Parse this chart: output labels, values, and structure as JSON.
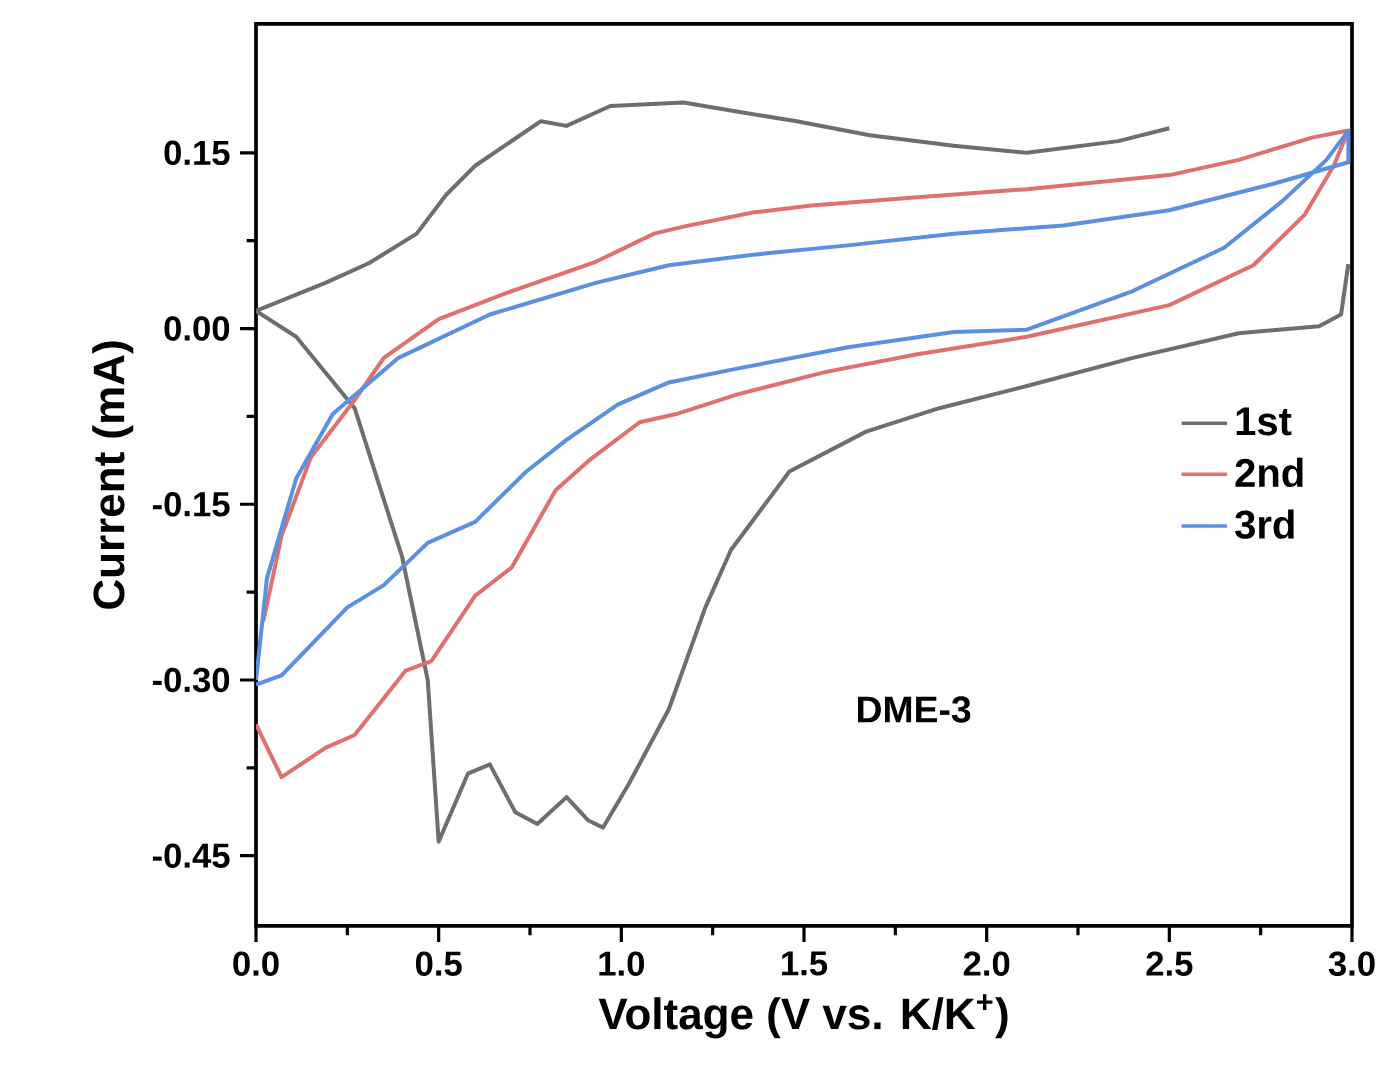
{
  "chart_data": {
    "type": "line",
    "xlabel": "Voltage (V vs. K/K$^{+}$)",
    "ylabel": "Current (mA)",
    "annotations": [
      "DME-3"
    ],
    "xlim": [
      0,
      3.0
    ],
    "ylim": [
      -0.51,
      0.26
    ],
    "xticks": [
      {
        "value": 0,
        "label": "0.0"
      },
      {
        "value": 0.5,
        "label": "0.5"
      },
      {
        "value": 1.0,
        "label": "1.0"
      },
      {
        "value": 1.5,
        "label": "1.5"
      },
      {
        "value": 2.0,
        "label": "2.0"
      },
      {
        "value": 2.5,
        "label": "2.5"
      },
      {
        "value": 3.0,
        "label": "3.0"
      }
    ],
    "yticks": [
      {
        "value": -0.45,
        "label": "-0.45"
      },
      {
        "value": -0.3,
        "label": "-0.30"
      },
      {
        "value": -0.15,
        "label": "-0.15"
      },
      {
        "value": 0,
        "label": "0.00"
      },
      {
        "value": 0.15,
        "label": "0.15"
      }
    ],
    "legend": "right",
    "grid": false,
    "marker": "none",
    "line_style": "solid",
    "series": [
      {
        "name": "1st",
        "color": "#6e6e6e",
        "x": [
          2.5,
          2.36,
          2.11,
          1.91,
          1.68,
          1.48,
          1.32,
          1.17,
          0.97,
          0.85,
          0.78,
          0.6,
          0.52,
          0.44,
          0.31,
          0.19,
          0.0,
          0.11,
          0.27,
          0.4,
          0.47,
          0.5,
          0.58,
          0.64,
          0.71,
          0.77,
          0.85,
          0.91,
          0.95,
          1.02,
          1.13,
          1.23,
          1.3,
          1.46,
          1.67,
          1.87,
          2.11,
          2.4,
          2.69,
          2.91,
          2.97,
          2.99
        ],
        "values": [
          0.171,
          0.16,
          0.15,
          0.156,
          0.165,
          0.177,
          0.185,
          0.193,
          0.19,
          0.173,
          0.177,
          0.139,
          0.114,
          0.081,
          0.056,
          0.039,
          0.015,
          -0.007,
          -0.068,
          -0.195,
          -0.3,
          -0.438,
          -0.38,
          -0.372,
          -0.413,
          -0.423,
          -0.4,
          -0.42,
          -0.426,
          -0.389,
          -0.325,
          -0.238,
          -0.189,
          -0.122,
          -0.088,
          -0.068,
          -0.049,
          -0.025,
          -0.004,
          0.002,
          0.012,
          0.055
        ]
      },
      {
        "name": "2nd",
        "color": "#e07070",
        "x": [
          0.0,
          0.07,
          0.19,
          0.27,
          0.41,
          0.48,
          0.6,
          0.7,
          0.82,
          0.91,
          1.05,
          1.15,
          1.32,
          1.56,
          1.81,
          2.11,
          2.5,
          2.73,
          2.87,
          2.95,
          2.99,
          2.89,
          2.69,
          2.5,
          2.11,
          1.81,
          1.52,
          1.36,
          1.17,
          1.09,
          0.93,
          0.7,
          0.5,
          0.35,
          0.27,
          0.15,
          0.07,
          0.02
        ],
        "values": [
          -0.338,
          -0.383,
          -0.358,
          -0.347,
          -0.292,
          -0.284,
          -0.228,
          -0.204,
          -0.138,
          -0.113,
          -0.08,
          -0.073,
          -0.056,
          -0.037,
          -0.022,
          -0.007,
          0.02,
          0.054,
          0.097,
          0.139,
          0.169,
          0.163,
          0.144,
          0.131,
          0.119,
          0.112,
          0.105,
          0.099,
          0.087,
          0.081,
          0.057,
          0.032,
          0.008,
          -0.025,
          -0.061,
          -0.11,
          -0.177,
          -0.25
        ]
      },
      {
        "name": "3rd",
        "color": "#5b8fe0",
        "x": [
          0.0,
          0.07,
          0.25,
          0.35,
          0.47,
          0.6,
          0.74,
          0.85,
          0.99,
          1.13,
          1.32,
          1.62,
          1.91,
          2.11,
          2.4,
          2.65,
          2.81,
          2.93,
          2.99,
          2.99,
          2.79,
          2.5,
          2.21,
          1.91,
          1.62,
          1.36,
          1.13,
          0.93,
          0.64,
          0.39,
          0.21,
          0.11,
          0.03,
          0.0
        ],
        "values": [
          -0.304,
          -0.296,
          -0.238,
          -0.219,
          -0.183,
          -0.165,
          -0.122,
          -0.095,
          -0.065,
          -0.046,
          -0.034,
          -0.016,
          -0.003,
          -0.001,
          0.032,
          0.069,
          0.109,
          0.144,
          0.169,
          0.142,
          0.124,
          0.101,
          0.088,
          0.081,
          0.071,
          0.063,
          0.054,
          0.039,
          0.012,
          -0.025,
          -0.073,
          -0.128,
          -0.213,
          -0.3
        ]
      }
    ]
  }
}
